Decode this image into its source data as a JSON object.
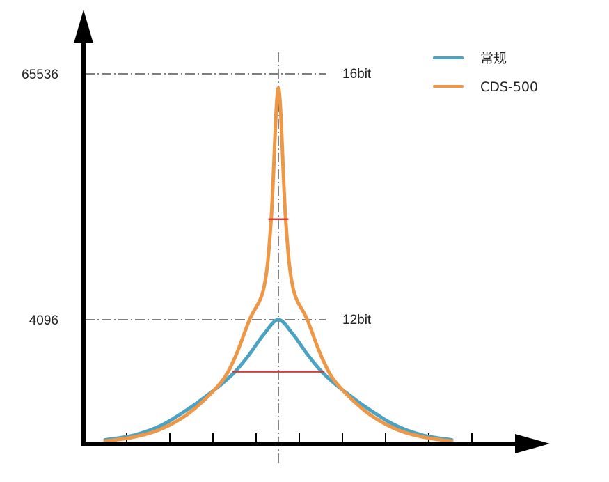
{
  "chart_data": {
    "type": "line",
    "title": "",
    "xlabel": "",
    "ylabel": "",
    "x_range": [
      -6,
      6
    ],
    "ylim": [
      0,
      65536
    ],
    "grid": false,
    "legend_position": "top-right",
    "y_ticks": [
      {
        "value": 65536,
        "label": "65536",
        "side_label": "16bit"
      },
      {
        "value": 4096,
        "label": "4096",
        "side_label": "12bit"
      }
    ],
    "x_tick_count": 9,
    "series": [
      {
        "name": "常规",
        "color": "#4aa3c2",
        "x": [
          -6,
          -5,
          -4,
          -3,
          -2.5,
          -2,
          -1.5,
          -1,
          -0.5,
          0,
          0.5,
          1,
          1.5,
          2,
          2.5,
          3,
          4,
          5,
          6
        ],
        "y": [
          105,
          260,
          610,
          1210,
          1560,
          1930,
          2370,
          2950,
          3620,
          4096,
          3620,
          2950,
          2370,
          1930,
          1560,
          1210,
          610,
          260,
          105
        ]
      },
      {
        "name": "CDS-500",
        "color": "#ee9847",
        "x": [
          -6,
          -5,
          -4,
          -3,
          -2,
          -1.5,
          -1,
          -0.5,
          -0.25,
          0,
          0.25,
          0.5,
          1,
          1.5,
          2,
          3,
          4,
          5,
          6
        ],
        "y": [
          63,
          200,
          488,
          1065,
          2000,
          2850,
          4096,
          12200,
          29200,
          62000,
          29200,
          12200,
          4096,
          2850,
          2000,
          1065,
          488,
          200,
          63
        ]
      }
    ],
    "annotations": [
      {
        "type": "half_width",
        "series": "CDS-500",
        "x_from": -0.25,
        "x_to": 0.25,
        "y": 29200,
        "color": "#d93a3a"
      },
      {
        "type": "half_width",
        "series": "常规",
        "x_from": -1.5,
        "x_to": 1.5,
        "y": 2370,
        "color": "#d93a3a"
      }
    ]
  },
  "legend": {
    "items": [
      {
        "label": "常规",
        "color": "#4aa3c2"
      },
      {
        "label": "CDS-500",
        "color": "#ee9847"
      }
    ]
  }
}
